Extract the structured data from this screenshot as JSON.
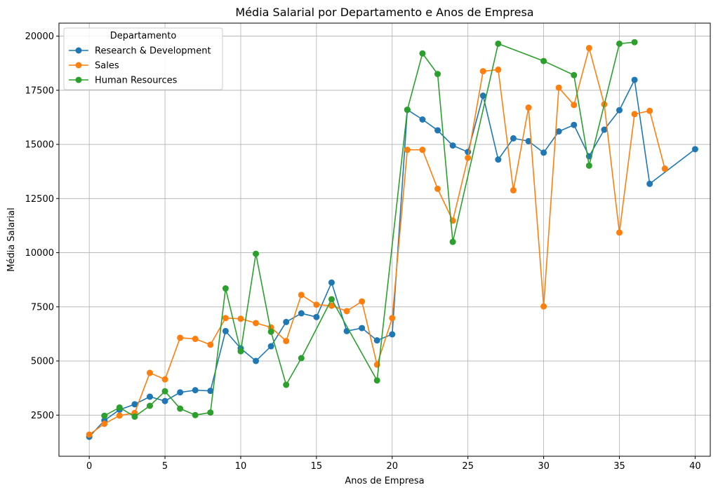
{
  "chart_data": {
    "type": "line",
    "title": "Média Salarial por Departamento e Anos de Empresa",
    "xlabel": "Anos de Empresa",
    "ylabel": "Média Salarial",
    "xlim": [
      -2,
      41
    ],
    "ylim": [
      600,
      20600
    ],
    "xticks": [
      0,
      5,
      10,
      15,
      20,
      25,
      30,
      35,
      40
    ],
    "yticks": [
      2500,
      5000,
      7500,
      10000,
      12500,
      15000,
      17500,
      20000
    ],
    "grid": true,
    "legend": {
      "title": "Departamento",
      "position": "top-left"
    },
    "series": [
      {
        "name": "Research & Development",
        "color": "#1f77b4",
        "x": [
          0,
          1,
          2,
          3,
          4,
          5,
          6,
          7,
          8,
          9,
          10,
          11,
          12,
          13,
          14,
          15,
          16,
          17,
          18,
          19,
          20,
          21,
          22,
          23,
          24,
          25,
          26,
          27,
          28,
          29,
          30,
          31,
          32,
          33,
          34,
          35,
          36,
          37,
          40
        ],
        "y": [
          1500,
          2250,
          2750,
          3000,
          3350,
          3150,
          3550,
          3650,
          3620,
          6380,
          5580,
          5000,
          5680,
          6800,
          7200,
          7030,
          8620,
          6380,
          6520,
          5950,
          6230,
          16600,
          16150,
          15650,
          14950,
          14650,
          17250,
          14300,
          15280,
          15150,
          14620,
          15600,
          15900,
          14450,
          15680,
          16580,
          17980,
          13180,
          14780
        ]
      },
      {
        "name": "Sales",
        "color": "#ff7f0e",
        "x": [
          0,
          1,
          2,
          3,
          4,
          5,
          6,
          7,
          8,
          9,
          10,
          11,
          12,
          13,
          14,
          15,
          16,
          17,
          18,
          19,
          20,
          21,
          22,
          23,
          24,
          25,
          26,
          27,
          28,
          29,
          30,
          31,
          32,
          33,
          34,
          35,
          36,
          37,
          38
        ],
        "y": [
          1600,
          2100,
          2480,
          2600,
          4450,
          4150,
          6070,
          6020,
          5750,
          6980,
          6950,
          6750,
          6550,
          5920,
          8050,
          7600,
          7550,
          7300,
          7750,
          4830,
          6980,
          14750,
          14750,
          12950,
          11480,
          14380,
          18380,
          18450,
          12880,
          16700,
          7520,
          17620,
          16820,
          19450,
          16850,
          10930,
          16400,
          16550,
          13880
        ]
      },
      {
        "name": "Human Resources",
        "color": "#2ca02c",
        "x": [
          1,
          2,
          3,
          4,
          5,
          6,
          7,
          8,
          9,
          10,
          11,
          12,
          13,
          14,
          16,
          19,
          21,
          22,
          23,
          24,
          27,
          30,
          32,
          33,
          35,
          36
        ],
        "y": [
          2470,
          2850,
          2430,
          2930,
          3600,
          2800,
          2500,
          2620,
          8350,
          5450,
          9950,
          6350,
          3900,
          5130,
          7850,
          4100,
          16600,
          19200,
          18250,
          10500,
          19650,
          18850,
          18200,
          14020,
          19650,
          19720
        ]
      }
    ]
  }
}
